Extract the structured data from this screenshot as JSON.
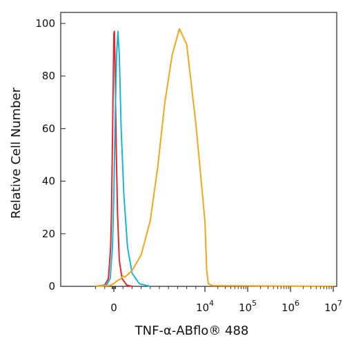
{
  "chart_data": {
    "type": "line",
    "title": "",
    "xlabel": "TNF-α-ABflo® 488",
    "ylabel": "Relative Cell Number",
    "x_scale": "biexponential",
    "xlim": [
      -2000,
      10000000
    ],
    "ylim": [
      0,
      100
    ],
    "grid": false,
    "legend": "none",
    "x_ticks": [
      {
        "value": 0,
        "label": "0",
        "exp": ""
      },
      {
        "value": 10000,
        "label": "10",
        "exp": "4"
      },
      {
        "value": 100000,
        "label": "10",
        "exp": "5"
      },
      {
        "value": 1000000,
        "label": "10",
        "exp": "6"
      },
      {
        "value": 10000000,
        "label": "10",
        "exp": "7"
      }
    ],
    "y_ticks": [
      0,
      20,
      40,
      60,
      80,
      100
    ],
    "series": [
      {
        "color": "#e8252d",
        "points": [
          [
            -2000,
            0
          ],
          [
            -1000,
            0.5
          ],
          [
            -600,
            3
          ],
          [
            -350,
            15
          ],
          [
            -250,
            30
          ],
          [
            -150,
            55
          ],
          [
            -60,
            80
          ],
          [
            0,
            96
          ],
          [
            60,
            97
          ],
          [
            130,
            85
          ],
          [
            250,
            55
          ],
          [
            400,
            28
          ],
          [
            600,
            10
          ],
          [
            900,
            3
          ],
          [
            1400,
            0.5
          ],
          [
            2000,
            0
          ]
        ]
      },
      {
        "color": "#16b6d8",
        "points": [
          [
            -2000,
            0
          ],
          [
            -800,
            0.5
          ],
          [
            -400,
            3
          ],
          [
            -150,
            15
          ],
          [
            0,
            35
          ],
          [
            150,
            65
          ],
          [
            300,
            88
          ],
          [
            450,
            97
          ],
          [
            600,
            88
          ],
          [
            800,
            60
          ],
          [
            1100,
            35
          ],
          [
            1500,
            15
          ],
          [
            2000,
            5
          ],
          [
            2800,
            1
          ],
          [
            4000,
            0
          ]
        ]
      },
      {
        "color": "#f5a516",
        "points": [
          [
            -2000,
            0
          ],
          [
            -500,
            0.3
          ],
          [
            0,
            1
          ],
          [
            300,
            2
          ],
          [
            800,
            3
          ],
          [
            1000,
            4
          ],
          [
            1200,
            3.5
          ],
          [
            2000,
            6
          ],
          [
            3000,
            12
          ],
          [
            4000,
            25
          ],
          [
            4800,
            45
          ],
          [
            5600,
            70
          ],
          [
            6400,
            88
          ],
          [
            7200,
            98
          ],
          [
            8000,
            92
          ],
          [
            9000,
            62
          ],
          [
            10000,
            25
          ],
          [
            11000,
            6
          ],
          [
            12000,
            1
          ],
          [
            15000,
            0.3
          ],
          [
            100000,
            0.2
          ],
          [
            10000000,
            0
          ]
        ]
      }
    ]
  }
}
